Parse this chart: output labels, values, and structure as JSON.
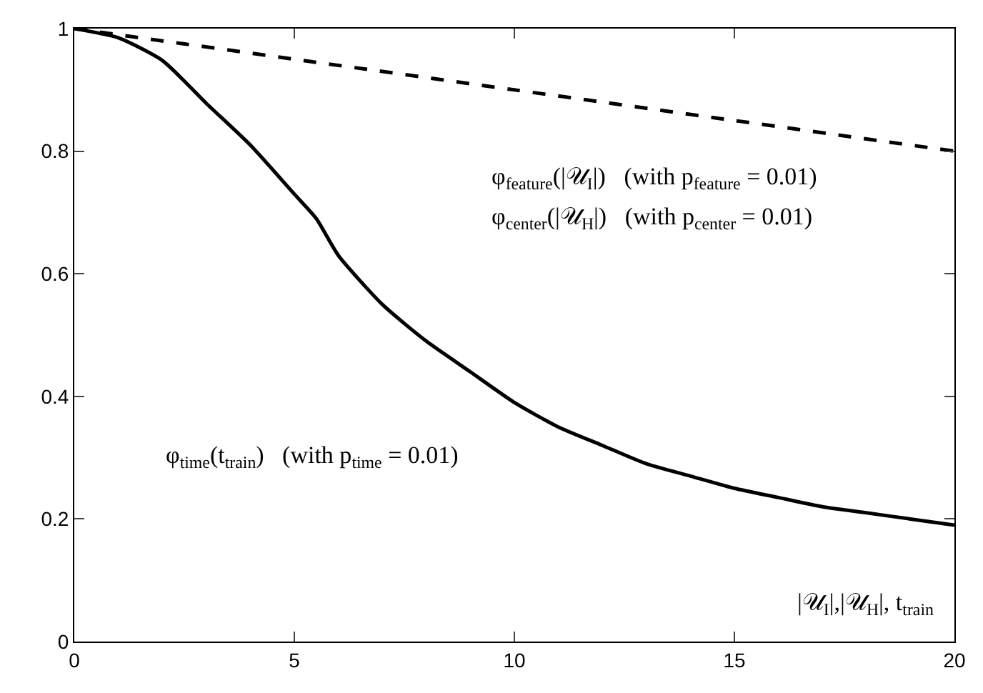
{
  "chart_data": {
    "type": "line",
    "xlabel": "|𝒰$_{I}$|,|𝒰$_{H}$|, t$_{train}$",
    "xlim": [
      0,
      20
    ],
    "xticks": [
      0,
      5,
      10,
      15,
      20
    ],
    "ylim": [
      0,
      1
    ],
    "yticks": [
      1,
      0.8,
      0.6,
      0.4,
      0.2,
      0
    ],
    "marker": "none",
    "series": [
      {
        "color": "#000000",
        "line_style": "dashed",
        "x": [
          0,
          5,
          10,
          15,
          20
        ],
        "values": [
          1,
          0.95,
          0.9,
          0.85,
          0.8
        ]
      },
      {
        "color": "#000000",
        "line_style": "solid",
        "x": [
          0,
          1,
          2,
          3,
          4,
          5,
          5.5,
          6,
          7,
          8,
          9,
          10,
          11,
          12,
          13,
          14,
          15,
          16,
          17,
          18,
          19,
          20
        ],
        "values": [
          1,
          0.985,
          0.948,
          0.878,
          0.81,
          0.73,
          0.69,
          0.63,
          0.55,
          0.49,
          0.44,
          0.39,
          0.35,
          0.32,
          0.29,
          0.27,
          0.25,
          0.235,
          0.22,
          0.21,
          0.2,
          0.19
        ]
      }
    ],
    "annotations": [
      "φ$_{feature}$(|𝒰$_{I}$|)   (with p$_{feature}$ = 0.01)",
      "φ$_{center}$(|𝒰$_{H}$|)   (with p$_{center}$ = 0.01)",
      "φ$_{time}$(t$_{train}$)   (with p$_{time}$ = 0.01)"
    ]
  }
}
